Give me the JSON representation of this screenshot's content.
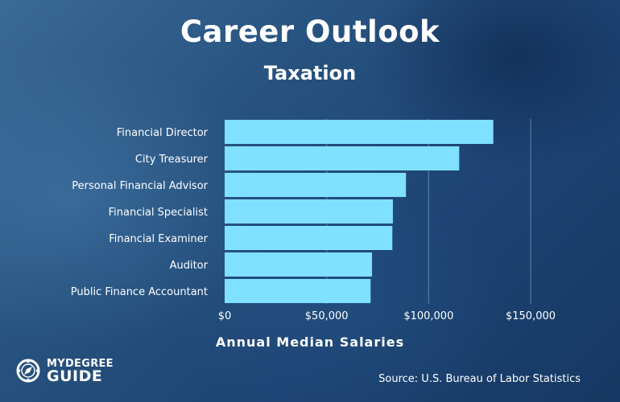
{
  "header": {
    "title": "Career Outlook",
    "subtitle": "Taxation"
  },
  "footer": {
    "source": "Source: U.S. Bureau of Labor Statistics",
    "logo_top": "MYDEGREE",
    "logo_bottom": "GUIDE"
  },
  "colors": {
    "bar": "#7fe0ff",
    "gridline": "#5e86ab",
    "text": "#ffffff"
  },
  "chart_data": {
    "type": "bar",
    "orientation": "horizontal",
    "title": "Career Outlook",
    "subtitle": "Taxation",
    "xlabel": "Annual Median Salaries",
    "ylabel": "",
    "categories": [
      "Financial Director",
      "City Treasurer",
      "Personal Financial Advisor",
      "Financial Specialist",
      "Financial Examiner",
      "Auditor",
      "Public Finance Accountant"
    ],
    "values": [
      131710,
      115000,
      88890,
      82480,
      82210,
      72250,
      71550
    ],
    "xlim": [
      0,
      150000
    ],
    "xticks": [
      0,
      50000,
      100000,
      150000
    ],
    "xtick_labels": [
      "$0",
      "$50,000",
      "$100,000",
      "$150,000"
    ],
    "grid": "vertical",
    "legend": "none"
  }
}
